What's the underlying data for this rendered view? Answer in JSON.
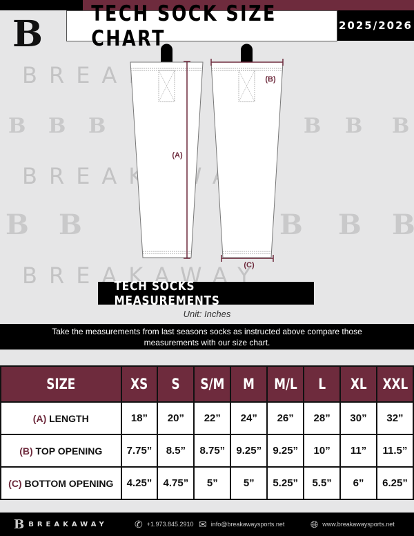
{
  "header": {
    "title": "TECH SOCK SIZE CHART",
    "season": "2025/2026",
    "logo": "B"
  },
  "watermark": {
    "text": "BREAKAWAY",
    "logo": "B"
  },
  "diagram": {
    "label_a": "(A)",
    "label_b": "(B)",
    "label_c": "(C)"
  },
  "section_title": "TECH SOCKS MEASUREMENTS",
  "unit": "Unit: Inches",
  "instructions": "Take the measurements from last seasons socks as instructed above compare those measurements  with our size chart.",
  "table": {
    "header": [
      "SIZE",
      "XS",
      "S",
      "S/M",
      "M",
      "M/L",
      "L",
      "XL",
      "XXL"
    ],
    "rows": [
      {
        "letter": "(A)",
        "label": "LENGTH",
        "values": [
          "18”",
          "20”",
          "22”",
          "24”",
          "26”",
          "28”",
          "30”",
          "32”"
        ]
      },
      {
        "letter": "(B)",
        "label": "TOP OPENING",
        "values": [
          "7.75”",
          "8.5”",
          "8.75”",
          "9.25”",
          "9.25”",
          "10”",
          "11”",
          "11.5”"
        ]
      },
      {
        "letter": "(C)",
        "label": "BOTTOM OPENING",
        "values": [
          "4.25”",
          "4.75”",
          "5”",
          "5”",
          "5.25”",
          "5.5”",
          "6”",
          "6.25”"
        ]
      }
    ]
  },
  "footer": {
    "brand": "BREAKAWAY",
    "phone": "+1.973.845.2910",
    "email": "info@breakawaysports.net",
    "website": "www.breakawaysports.net"
  },
  "colors": {
    "maroon": "#6e2b3d",
    "black": "#000000",
    "background": "#e6e6e7"
  }
}
